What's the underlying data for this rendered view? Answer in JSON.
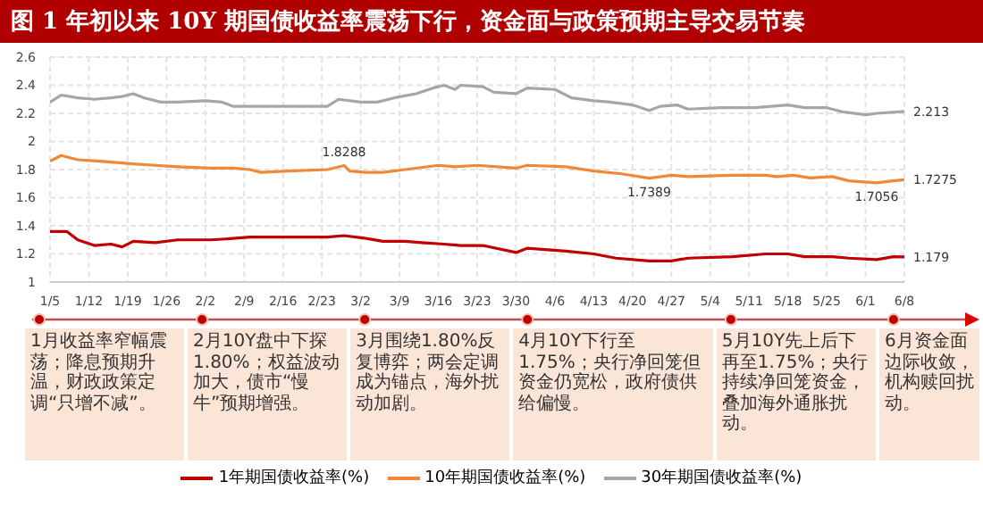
{
  "chart_data": {
    "type": "line",
    "title": "图 1  年初以来 10Y 期国债收益率震荡下行，资金面与政策预期主导交易节奏",
    "xlim": [
      "--01-05",
      "--06-08"
    ],
    "xticks": [
      {
        "value": "--01-05",
        "label": "1/5"
      },
      {
        "value": "--01-12",
        "label": "1/12"
      },
      {
        "value": "--01-19",
        "label": "1/19"
      },
      {
        "value": "--01-26",
        "label": "1/26"
      },
      {
        "value": "--02-02",
        "label": "2/2"
      },
      {
        "value": "--02-09",
        "label": "2/9"
      },
      {
        "value": "--02-16",
        "label": "2/16"
      },
      {
        "value": "--02-23",
        "label": "2/23"
      },
      {
        "value": "--03-02",
        "label": "3/2"
      },
      {
        "value": "--03-09",
        "label": "3/9"
      },
      {
        "value": "--03-16",
        "label": "3/16"
      },
      {
        "value": "--03-23",
        "label": "3/23"
      },
      {
        "value": "--03-30",
        "label": "3/30"
      },
      {
        "value": "--04-06",
        "label": "4/6"
      },
      {
        "value": "--04-13",
        "label": "4/13"
      },
      {
        "value": "--04-20",
        "label": "4/20"
      },
      {
        "value": "--04-27",
        "label": "4/27"
      },
      {
        "value": "--05-04",
        "label": "5/4"
      },
      {
        "value": "--05-11",
        "label": "5/11"
      },
      {
        "value": "--05-18",
        "label": "5/18"
      },
      {
        "value": "--05-25",
        "label": "5/25"
      },
      {
        "value": "--06-01",
        "label": "6/1"
      },
      {
        "value": "--06-08",
        "label": "6/8"
      }
    ],
    "ylim": [
      1,
      2.6
    ],
    "yticks": [
      1,
      1.2,
      1.4,
      1.6,
      1.8,
      2,
      2.2,
      2.4,
      2.6
    ],
    "grid": true,
    "legend": "bottom",
    "marker": "none",
    "series": [
      {
        "name": "1年期国债收益率(%)",
        "color": "#c00000",
        "x": [
          "--01-05",
          "--01-08",
          "--01-10",
          "--01-13",
          "--01-16",
          "--01-18",
          "--01-20",
          "--01-24",
          "--01-28",
          "--02-03",
          "--02-07",
          "--02-10",
          "--02-17",
          "--02-24",
          "--02-27",
          "--03-03",
          "--03-06",
          "--03-10",
          "--03-13",
          "--03-17",
          "--03-20",
          "--03-24",
          "--03-30",
          "--04-01",
          "--04-08",
          "--04-13",
          "--04-17",
          "--04-23",
          "--04-27",
          "--04-30",
          "--05-08",
          "--05-14",
          "--05-18",
          "--05-21",
          "--05-26",
          "--05-29",
          "--06-03",
          "--06-06",
          "--06-08"
        ],
        "values": [
          1.36,
          1.36,
          1.3,
          1.26,
          1.27,
          1.25,
          1.29,
          1.28,
          1.3,
          1.3,
          1.31,
          1.32,
          1.32,
          1.32,
          1.33,
          1.31,
          1.29,
          1.29,
          1.28,
          1.27,
          1.26,
          1.26,
          1.21,
          1.24,
          1.22,
          1.2,
          1.17,
          1.15,
          1.15,
          1.17,
          1.18,
          1.2,
          1.2,
          1.18,
          1.18,
          1.17,
          1.16,
          1.18,
          1.179
        ]
      },
      {
        "name": "10年期国债收益率(%)",
        "color": "#f0883a",
        "x": [
          "--01-05",
          "--01-07",
          "--01-10",
          "--01-14",
          "--01-17",
          "--01-20",
          "--01-24",
          "--01-28",
          "--02-03",
          "--02-07",
          "--02-10",
          "--02-12",
          "--02-17",
          "--02-24",
          "--02-27",
          "--02-28",
          "--03-03",
          "--03-06",
          "--03-10",
          "--03-16",
          "--03-19",
          "--03-23",
          "--03-30",
          "--04-01",
          "--04-08",
          "--04-13",
          "--04-18",
          "--04-23",
          "--04-27",
          "--04-30",
          "--05-08",
          "--05-14",
          "--05-16",
          "--05-19",
          "--05-22",
          "--05-26",
          "--05-29",
          "--06-03",
          "--06-06",
          "--06-08"
        ],
        "values": [
          1.86,
          1.9,
          1.87,
          1.86,
          1.85,
          1.84,
          1.83,
          1.82,
          1.81,
          1.81,
          1.8,
          1.78,
          1.79,
          1.8,
          1.8288,
          1.79,
          1.78,
          1.78,
          1.8,
          1.83,
          1.82,
          1.83,
          1.81,
          1.83,
          1.82,
          1.79,
          1.77,
          1.7389,
          1.76,
          1.75,
          1.76,
          1.76,
          1.75,
          1.76,
          1.74,
          1.75,
          1.72,
          1.7056,
          1.72,
          1.7275
        ]
      },
      {
        "name": "30年期国债收益率(%)",
        "color": "#a6a6a6",
        "x": [
          "--01-05",
          "--01-07",
          "--01-10",
          "--01-13",
          "--01-16",
          "--01-18",
          "--01-20",
          "--01-22",
          "--01-25",
          "--01-28",
          "--02-02",
          "--02-05",
          "--02-07",
          "--02-12",
          "--02-17",
          "--02-24",
          "--02-26",
          "--03-02",
          "--03-05",
          "--03-08",
          "--03-12",
          "--03-15",
          "--03-17",
          "--03-19",
          "--03-20",
          "--03-24",
          "--03-26",
          "--03-30",
          "--04-01",
          "--04-06",
          "--04-09",
          "--04-13",
          "--04-16",
          "--04-20",
          "--04-23",
          "--04-25",
          "--04-28",
          "--04-30",
          "--05-06",
          "--05-12",
          "--05-18",
          "--05-21",
          "--05-25",
          "--05-28",
          "--06-01",
          "--06-03",
          "--06-08"
        ],
        "values": [
          2.28,
          2.33,
          2.31,
          2.3,
          2.31,
          2.32,
          2.34,
          2.31,
          2.28,
          2.28,
          2.29,
          2.28,
          2.25,
          2.25,
          2.25,
          2.25,
          2.3,
          2.28,
          2.28,
          2.31,
          2.34,
          2.38,
          2.4,
          2.37,
          2.4,
          2.39,
          2.35,
          2.34,
          2.38,
          2.37,
          2.31,
          2.29,
          2.28,
          2.26,
          2.22,
          2.25,
          2.26,
          2.23,
          2.24,
          2.24,
          2.26,
          2.24,
          2.24,
          2.21,
          2.19,
          2.2,
          2.213
        ]
      }
    ],
    "annotations": [
      {
        "text": "1.8288",
        "x": "--02-27",
        "y": 1.8288
      },
      {
        "text": "1.7389",
        "x": "--04-23",
        "y": 1.7389
      },
      {
        "text": "1.7056",
        "x": "--06-03",
        "y": 1.7056
      },
      {
        "text": "2.213",
        "x": "--06-08",
        "y": 2.213
      },
      {
        "text": "1.7275",
        "x": "--06-08",
        "y": 1.7275
      },
      {
        "text": "1.179",
        "x": "--06-08",
        "y": 1.179
      },
      "1月收益率窄幅震荡；降息预期升温，财政政策定调“只增不减”。",
      "2月10Y盘中下探1.80%；权益波动加大，债市“慢牛”预期增强。",
      "3月围绕1.80%反复博弈；两会定调成为锚点，海外扰动加剧。",
      "4月10Y下行至1.75%；央行净回笼但资金仍宽松，政府债供给偏慢。",
      "5月10Y先上后下再至1.75%；央行持续净回笼资金，叠加海外通胀扰动。",
      "6月资金面边际收敛，机构赎回扰动。"
    ]
  }
}
